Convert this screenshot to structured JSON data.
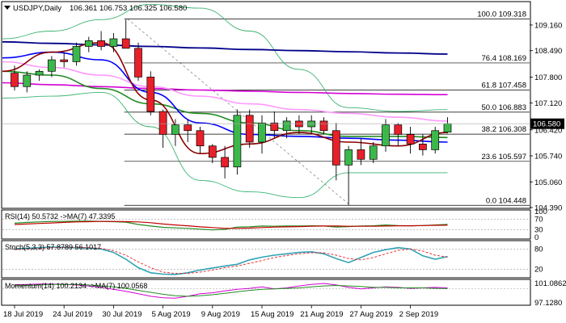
{
  "header": {
    "symbol": "USDJPY,Daily",
    "ohlc": "106.361 106.753 106.325 106.580"
  },
  "chart_data": {
    "type": "candlestick",
    "title": "USDJPY,Daily",
    "ylim": [
      104.39,
      109.75
    ],
    "price_ticks": [
      "109.160",
      "108.490",
      "107.800",
      "107.120",
      "106.420",
      "105.740",
      "105.060",
      "104.390"
    ],
    "current_price_label": "106.580",
    "current_price": 106.58,
    "x_labels": [
      "18 Jul 2019",
      "24 Jul 2019",
      "30 Jul 2019",
      "5 Aug 2019",
      "9 Aug 2019",
      "15 Aug 2019",
      "21 Aug 2019",
      "27 Aug 2019",
      "2 Sep 2019"
    ],
    "x_label_bars": [
      0,
      4,
      8,
      12,
      16,
      20,
      24,
      28,
      32
    ],
    "fib_levels": [
      {
        "label": "100.0 109.318",
        "value": 109.318
      },
      {
        "label": "76.4 108.169",
        "value": 108.169
      },
      {
        "label": "61.8 107.458",
        "value": 107.458
      },
      {
        "label": "50.0 106.883",
        "value": 106.883
      },
      {
        "label": "38.2 106.308",
        "value": 106.308
      },
      {
        "label": "23.6 105.597",
        "value": 105.597
      },
      {
        "label": "0.0 104.448",
        "value": 104.448
      }
    ],
    "candles": [
      [
        107.9,
        108.1,
        107.45,
        107.55
      ],
      [
        107.55,
        107.95,
        107.4,
        107.85
      ],
      [
        107.85,
        108.0,
        107.7,
        107.95
      ],
      [
        107.95,
        108.35,
        107.8,
        108.25
      ],
      [
        108.25,
        108.45,
        108.05,
        108.2
      ],
      [
        108.2,
        108.7,
        108.1,
        108.6
      ],
      [
        108.6,
        108.85,
        108.45,
        108.75
      ],
      [
        108.75,
        109.0,
        108.5,
        108.6
      ],
      [
        108.6,
        108.95,
        108.45,
        108.8
      ],
      [
        108.8,
        109.3,
        108.55,
        108.55
      ],
      [
        108.55,
        108.7,
        107.7,
        107.8
      ],
      [
        107.8,
        107.95,
        106.8,
        106.9
      ],
      [
        106.9,
        106.95,
        105.95,
        106.3
      ],
      [
        106.3,
        106.7,
        106.0,
        106.55
      ],
      [
        106.55,
        106.7,
        106.1,
        106.4
      ],
      [
        106.4,
        106.5,
        105.8,
        106.0
      ],
      [
        106.0,
        106.05,
        105.55,
        105.7
      ],
      [
        105.7,
        106.0,
        105.15,
        105.45
      ],
      [
        105.45,
        106.95,
        105.25,
        106.8
      ],
      [
        106.8,
        106.95,
        105.95,
        106.1
      ],
      [
        106.1,
        106.8,
        105.8,
        106.6
      ],
      [
        106.6,
        106.9,
        106.2,
        106.4
      ],
      [
        106.4,
        106.75,
        106.2,
        106.65
      ],
      [
        106.65,
        106.8,
        106.3,
        106.5
      ],
      [
        106.5,
        106.8,
        106.3,
        106.65
      ],
      [
        106.65,
        106.75,
        106.3,
        106.4
      ],
      [
        106.4,
        106.6,
        105.1,
        105.5
      ],
      [
        105.5,
        106.0,
        104.45,
        105.9
      ],
      [
        105.9,
        106.2,
        105.5,
        105.65
      ],
      [
        105.65,
        106.1,
        105.55,
        106.0
      ],
      [
        106.0,
        106.7,
        105.85,
        106.55
      ],
      [
        106.55,
        106.6,
        106.0,
        106.3
      ],
      [
        106.3,
        106.5,
        105.8,
        106.05
      ],
      [
        106.05,
        106.3,
        105.75,
        105.9
      ],
      [
        105.9,
        106.5,
        105.8,
        106.4
      ],
      [
        106.36,
        106.75,
        106.33,
        106.58
      ]
    ],
    "ma_series": [
      {
        "color": "#00008b",
        "values": [
          108.72,
          108.68,
          108.64,
          108.6,
          108.56,
          108.52,
          108.49,
          108.46,
          108.43,
          108.4
        ]
      },
      {
        "color": "#d400d4",
        "values": [
          107.65,
          107.6,
          107.55,
          107.5,
          107.46,
          107.43,
          107.4,
          107.37,
          107.35,
          107.34
        ]
      },
      {
        "color": "#ff99ff",
        "values": [
          108.2,
          108.05,
          107.85,
          107.55,
          107.3,
          107.1,
          106.95,
          106.85,
          106.75,
          106.65
        ]
      },
      {
        "color": "#228b22",
        "values": [
          107.95,
          107.85,
          107.5,
          107.1,
          106.85,
          106.6,
          106.4,
          106.25,
          106.25,
          106.22
        ]
      },
      {
        "color": "#0000ff",
        "values": [
          108.3,
          108.45,
          108.25,
          107.4,
          106.6,
          106.3,
          106.25,
          106.2,
          106.15,
          106.1
        ]
      },
      {
        "color": "#8b0000",
        "values": [
          107.95,
          108.45,
          108.7,
          107.2,
          105.8,
          106.05,
          106.35,
          106.1,
          106.0,
          106.35
        ]
      }
    ],
    "bollinger": {
      "color": "#3cb371",
      "upper": [
        108.8,
        109.0,
        109.3,
        109.7,
        109.6,
        109.0,
        108.0,
        107.0,
        106.9,
        106.95
      ],
      "lower": [
        107.25,
        107.3,
        107.4,
        106.5,
        105.1,
        104.8,
        104.65,
        105.3,
        105.3,
        105.3
      ]
    },
    "panels": [
      {
        "name": "RSI",
        "label": "RSI(14) 50.5732 ->MA(7) 47.3395",
        "ticks": [
          "100",
          "70",
          "30",
          "0"
        ]
      },
      {
        "name": "Stoch",
        "label": "Stoch(5,3,3) 57.8789 56.1017",
        "ticks": [
          "80",
          "20"
        ]
      },
      {
        "name": "Momentum",
        "label": "Momentum(14) 100.2134 ->MA(7) 100.0568",
        "ticks": [
          "101.0862",
          "97.1280"
        ]
      }
    ],
    "rsi": {
      "line": [
        55,
        58,
        60,
        62,
        62,
        63,
        63,
        62,
        61,
        59,
        50,
        44,
        39,
        37,
        35,
        32,
        29,
        31,
        40,
        41,
        44,
        43,
        44,
        44,
        45,
        44,
        40,
        42,
        44,
        45,
        48,
        46,
        45,
        46,
        48,
        50.57
      ],
      "ma": [
        50,
        52,
        54,
        56,
        58,
        60,
        61,
        62,
        62,
        61,
        60,
        57,
        52,
        48,
        45,
        41,
        38,
        35,
        35,
        36,
        38,
        40,
        41,
        42,
        43,
        44,
        44,
        43,
        43,
        43,
        44,
        45,
        45,
        46,
        47,
        47.34
      ]
    },
    "stoch": {
      "k": [
        80,
        82,
        84,
        86,
        85,
        84,
        83,
        80,
        70,
        50,
        25,
        10,
        6,
        5,
        10,
        18,
        24,
        30,
        35,
        48,
        56,
        62,
        66,
        70,
        72,
        66,
        52,
        40,
        55,
        70,
        78,
        84,
        80,
        60,
        50,
        57.88
      ],
      "d": [
        78,
        80,
        82,
        84,
        85,
        85,
        84,
        82,
        75,
        62,
        42,
        25,
        12,
        8,
        8,
        12,
        18,
        25,
        30,
        38,
        46,
        55,
        61,
        66,
        69,
        69,
        62,
        52,
        48,
        55,
        66,
        76,
        80,
        74,
        62,
        56.1
      ]
    },
    "momentum": {
      "line": [
        100.8,
        100.9,
        101.0,
        101.0,
        100.9,
        100.8,
        100.6,
        100.3,
        99.9,
        99.5,
        99.0,
        98.5,
        98.2,
        98.1,
        98.5,
        99.0,
        99.2,
        99.6,
        99.9,
        100.1,
        100.4,
        100.0,
        100.2,
        100.6,
        100.9,
        101.1,
        100.8,
        100.3,
        100.0,
        100.2,
        100.4,
        100.3,
        100.1,
        100.2,
        100.3,
        100.21
      ],
      "ma": [
        100.6,
        100.7,
        100.8,
        100.9,
        100.9,
        100.9,
        100.8,
        100.6,
        100.4,
        100.1,
        99.7,
        99.3,
        98.9,
        98.6,
        98.5,
        98.6,
        98.8,
        99.1,
        99.4,
        99.7,
        99.9,
        100.0,
        100.1,
        100.2,
        100.4,
        100.6,
        100.7,
        100.6,
        100.5,
        100.3,
        100.3,
        100.2,
        100.2,
        100.2,
        100.1,
        100.06
      ]
    }
  }
}
